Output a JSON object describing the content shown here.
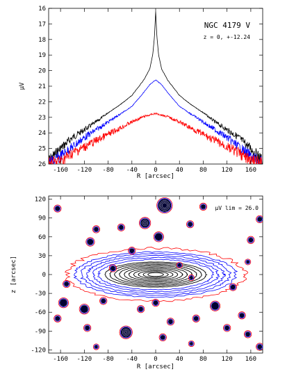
{
  "chart_data": [
    {
      "type": "line",
      "title": "NGC 4179 V",
      "subtitle": "z = 0, +-12.24",
      "xlabel": "R [arcsec]",
      "ylabel": "μV",
      "xlim": [
        -180,
        180
      ],
      "ylim": [
        26,
        16
      ],
      "y_inverted": true,
      "grid": false,
      "xticks": [
        -160,
        -120,
        -80,
        -40,
        0,
        40,
        80,
        120,
        160
      ],
      "yticks": [
        16,
        17,
        18,
        19,
        20,
        21,
        22,
        23,
        24,
        25,
        26
      ],
      "series": [
        {
          "color": "#000000",
          "x": [
            -180,
            -160,
            -140,
            -120,
            -100,
            -80,
            -60,
            -40,
            -20,
            -10,
            -5,
            -2,
            0,
            2,
            5,
            10,
            20,
            40,
            60,
            80,
            100,
            120,
            140,
            160,
            180
          ],
          "y": [
            25.8,
            25.0,
            24.3,
            23.8,
            23.3,
            22.7,
            22.2,
            21.6,
            20.6,
            19.9,
            19.0,
            17.8,
            16.2,
            17.8,
            19.0,
            19.9,
            20.6,
            21.6,
            22.2,
            22.7,
            23.3,
            23.8,
            24.3,
            25.0,
            25.8
          ]
        },
        {
          "color": "#0000ff",
          "x": [
            -180,
            -160,
            -140,
            -120,
            -100,
            -80,
            -60,
            -40,
            -20,
            -10,
            0,
            10,
            20,
            40,
            60,
            80,
            100,
            120,
            140,
            160,
            180
          ],
          "y": [
            26.0,
            25.5,
            24.9,
            24.3,
            23.8,
            23.3,
            22.8,
            22.3,
            21.4,
            20.9,
            20.6,
            20.9,
            21.4,
            22.3,
            22.8,
            23.3,
            23.8,
            24.3,
            24.9,
            25.5,
            26.0
          ]
        },
        {
          "color": "#ff0000",
          "x": [
            -180,
            -160,
            -140,
            -120,
            -100,
            -80,
            -60,
            -40,
            -20,
            0,
            20,
            40,
            60,
            80,
            100,
            120,
            140,
            160,
            180
          ],
          "y": [
            26.0,
            25.8,
            25.3,
            24.9,
            24.5,
            24.1,
            23.7,
            23.3,
            22.95,
            22.75,
            22.95,
            23.3,
            23.7,
            24.1,
            24.5,
            24.9,
            25.3,
            25.8,
            26.0
          ]
        }
      ]
    },
    {
      "type": "contour",
      "xlabel": "R [arcsec]",
      "ylabel": "z [arcsec]",
      "xlim": [
        -180,
        180
      ],
      "ylim": [
        -125,
        125
      ],
      "grid": false,
      "xticks": [
        -160,
        -120,
        -80,
        -40,
        0,
        40,
        80,
        120,
        160
      ],
      "yticks": [
        -120,
        -90,
        -60,
        -30,
        0,
        30,
        60,
        90,
        120
      ],
      "annotation": "μV lim = 26.0",
      "galaxy": {
        "center": [
          0,
          0
        ],
        "outer_contour": {
          "color": "#ff0000",
          "a_R": 150,
          "b_z": 42
        },
        "mid_contours": {
          "color": "#0000ff",
          "count": 5,
          "a_R": [
            135,
            125,
            115,
            105,
            96
          ],
          "b_z": [
            36,
            33,
            30,
            27,
            24
          ]
        },
        "inner_contours": {
          "color": "#000000",
          "count": 10,
          "a_R": [
            85,
            77,
            69,
            61,
            53,
            45,
            37,
            29,
            21,
            13
          ],
          "b_z": [
            20,
            18,
            16,
            14,
            12,
            10,
            8,
            6,
            4.5,
            3
          ]
        }
      },
      "stars": [
        {
          "x": -165,
          "y": 105,
          "size": 3
        },
        {
          "x": -110,
          "y": 52,
          "size": 4
        },
        {
          "x": -100,
          "y": 72,
          "size": 3
        },
        {
          "x": -72,
          "y": 10,
          "size": 3
        },
        {
          "x": -58,
          "y": 75,
          "size": 3
        },
        {
          "x": -40,
          "y": 38,
          "size": 3
        },
        {
          "x": -18,
          "y": 82,
          "size": 6
        },
        {
          "x": 5,
          "y": 60,
          "size": 5
        },
        {
          "x": 15,
          "y": 110,
          "size": 9
        },
        {
          "x": 58,
          "y": 80,
          "size": 3
        },
        {
          "x": 80,
          "y": 108,
          "size": 3
        },
        {
          "x": 160,
          "y": 55,
          "size": 3
        },
        {
          "x": 175,
          "y": 88,
          "size": 3
        },
        {
          "x": 155,
          "y": 20,
          "size": 2
        },
        {
          "x": -150,
          "y": -15,
          "size": 3
        },
        {
          "x": -165,
          "y": -70,
          "size": 3
        },
        {
          "x": -155,
          "y": -45,
          "size": 5
        },
        {
          "x": -120,
          "y": -55,
          "size": 5
        },
        {
          "x": -115,
          "y": -85,
          "size": 3
        },
        {
          "x": -88,
          "y": -42,
          "size": 3
        },
        {
          "x": -50,
          "y": -92,
          "size": 7
        },
        {
          "x": -25,
          "y": -55,
          "size": 3
        },
        {
          "x": 0,
          "y": -45,
          "size": 3
        },
        {
          "x": 12,
          "y": -100,
          "size": 3
        },
        {
          "x": 25,
          "y": -75,
          "size": 3
        },
        {
          "x": 68,
          "y": -70,
          "size": 3
        },
        {
          "x": 100,
          "y": -50,
          "size": 5
        },
        {
          "x": 120,
          "y": -85,
          "size": 3
        },
        {
          "x": 130,
          "y": -20,
          "size": 3
        },
        {
          "x": 145,
          "y": -65,
          "size": 3
        },
        {
          "x": 155,
          "y": -95,
          "size": 3
        },
        {
          "x": 175,
          "y": -115,
          "size": 3
        },
        {
          "x": -100,
          "y": -115,
          "size": 2
        },
        {
          "x": 60,
          "y": -110,
          "size": 2
        },
        {
          "x": 40,
          "y": 15,
          "size": 2
        },
        {
          "x": 60,
          "y": -5,
          "size": 2
        }
      ]
    }
  ]
}
